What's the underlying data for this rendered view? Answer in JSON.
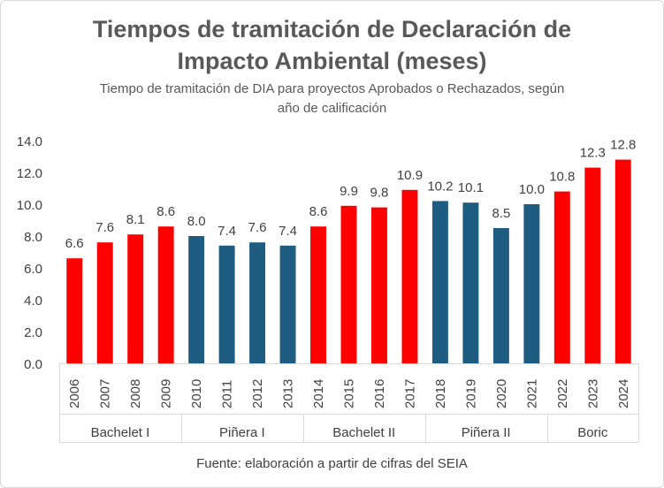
{
  "chart_data": {
    "type": "bar",
    "title_line1": "Tiempos de tramitación  de Declaración de",
    "title_line2": "Impacto Ambiental (meses)",
    "subtitle_line1": "Tiempo de tramitación de DIA para proyectos Aprobados o Rechazados, según",
    "subtitle_line2": "año de calificación",
    "source": "Fuente: elaboración a partir de cifras del SEIA",
    "xlabel": "",
    "ylabel": "",
    "ylim": [
      0,
      14
    ],
    "yticks": [
      "0.0",
      "2.0",
      "4.0",
      "6.0",
      "8.0",
      "10.0",
      "12.0",
      "14.0"
    ],
    "categories": [
      "2006",
      "2007",
      "2008",
      "2009",
      "2010",
      "2011",
      "2012",
      "2013",
      "2014",
      "2015",
      "2016",
      "2017",
      "2018",
      "2019",
      "2020",
      "2021",
      "2022",
      "2023",
      "2024"
    ],
    "values": [
      6.6,
      7.6,
      8.1,
      8.6,
      8.0,
      7.4,
      7.6,
      7.4,
      8.6,
      9.9,
      9.8,
      10.9,
      10.2,
      10.1,
      8.5,
      10.0,
      10.8,
      12.3,
      12.8
    ],
    "value_labels": [
      "6.6",
      "7.6",
      "8.1",
      "8.6",
      "8.0",
      "7.4",
      "7.6",
      "7.4",
      "8.6",
      "9.9",
      "9.8",
      "10.9",
      "10.2",
      "10.1",
      "8.5",
      "10.0",
      "10.8",
      "12.3",
      "12.8"
    ],
    "groups": [
      {
        "name": "Bachelet I",
        "count": 4,
        "color": "#ff0000"
      },
      {
        "name": "Piñera I",
        "count": 4,
        "color": "#1f5c82"
      },
      {
        "name": "Bachelet II",
        "count": 4,
        "color": "#ff0000"
      },
      {
        "name": "Piñera II",
        "count": 4,
        "color": "#1f5c82"
      },
      {
        "name": "Boric",
        "count": 3,
        "color": "#ff0000"
      }
    ],
    "grid": false
  }
}
